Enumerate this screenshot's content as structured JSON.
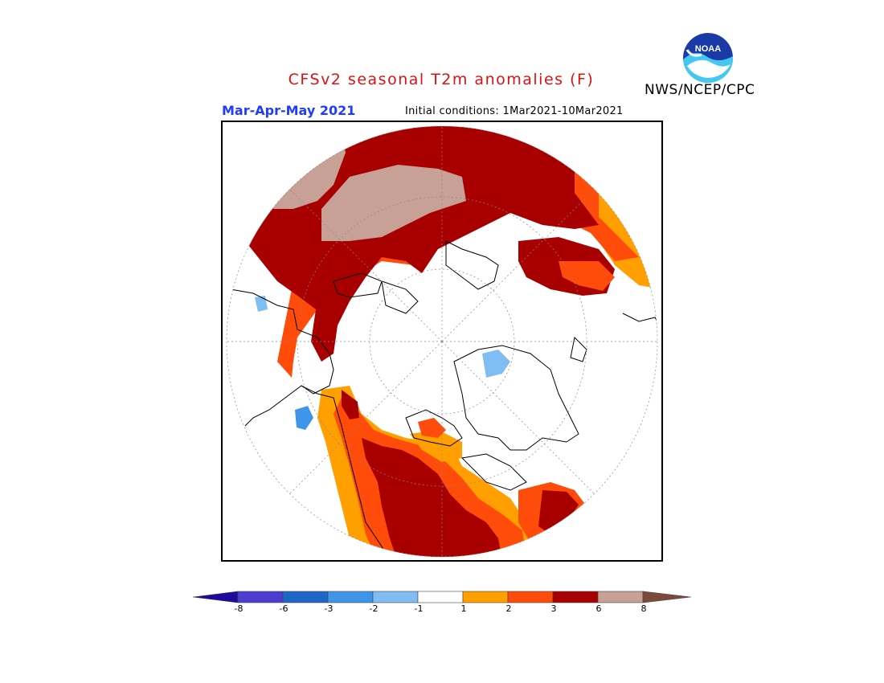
{
  "header": {
    "title": "CFSv2 seasonal T2m anomalies (F)",
    "agency": "NWS/NCEP/CPC",
    "logo_text": "NOAA",
    "period": "Mar-Apr-May 2021",
    "initial_conditions": "Initial conditions: 1Mar2021-10Mar2021"
  },
  "colorbar": {
    "ticks": [
      "-8",
      "-6",
      "-3",
      "-2",
      "-1",
      "1",
      "2",
      "3",
      "6",
      "8"
    ],
    "colors": [
      "#1e0b9e",
      "#4a3dd0",
      "#1e66c8",
      "#3f95e8",
      "#7fbdf2",
      "#ffffff",
      "#ffa000",
      "#ff4c0a",
      "#a80000",
      "#c7a096",
      "#7a4a3a"
    ]
  },
  "map": {
    "projection": "north polar stereographic",
    "legend_colors": {
      "above_1": "#ffa000",
      "above_2": "#ff4c0a",
      "above_3": "#a80000",
      "above_6": "#c7a096",
      "below_1": "#7fbdf2",
      "below_2": "#3f95e8"
    }
  }
}
